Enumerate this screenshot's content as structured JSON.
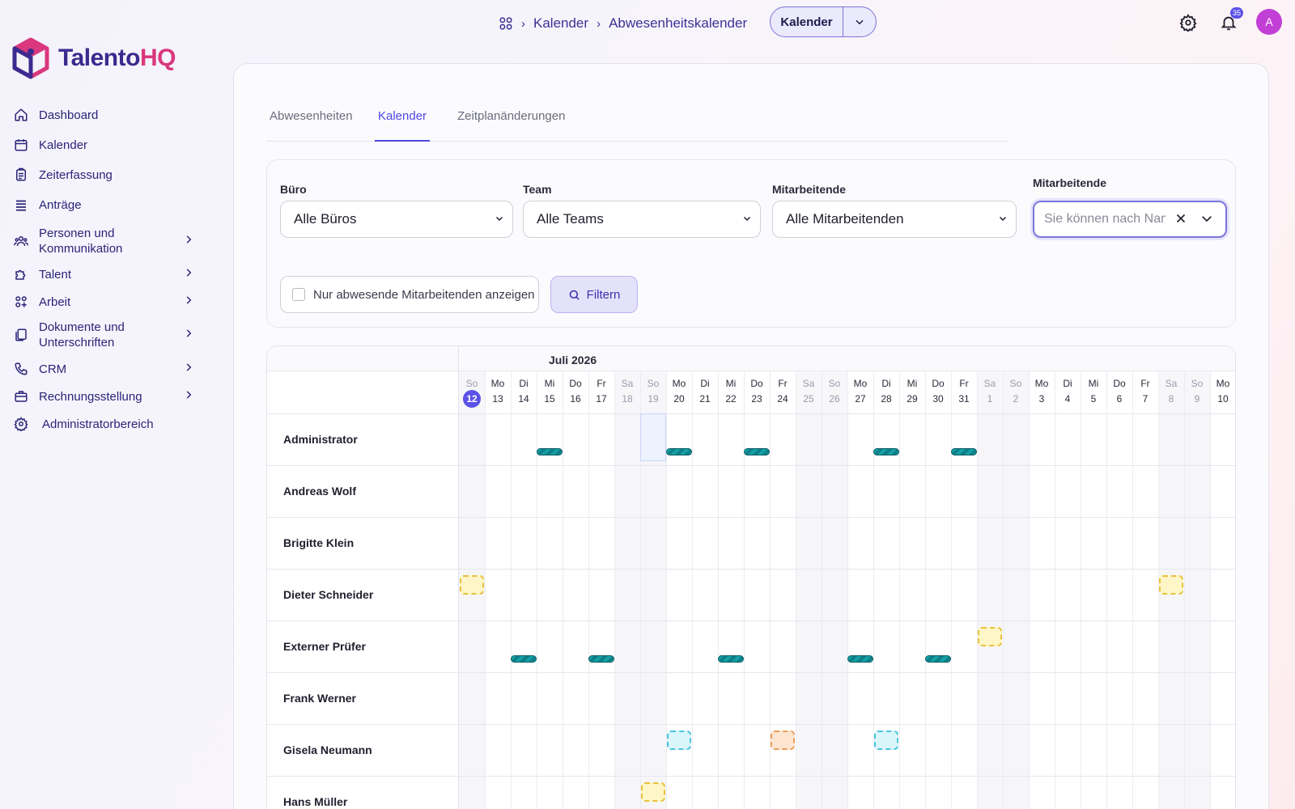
{
  "brand": {
    "part1": "Talento",
    "part2": "HQ"
  },
  "sidebar": {
    "items": [
      {
        "label": "Dashboard",
        "icon": "home-icon",
        "has_children": false
      },
      {
        "label": "Kalender",
        "icon": "calendar-icon",
        "has_children": false
      },
      {
        "label": "Zeiterfassung",
        "icon": "clipboard-icon",
        "has_children": false
      },
      {
        "label": "Anträge",
        "icon": "list-icon",
        "has_children": false
      },
      {
        "label": "Personen und Kommunikation",
        "icon": "people-icon",
        "has_children": true
      },
      {
        "label": "Talent",
        "icon": "puzzle-icon",
        "has_children": true
      },
      {
        "label": "Arbeit",
        "icon": "grid-icon",
        "has_children": true
      },
      {
        "label": "Dokumente und Unterschriften",
        "icon": "documents-icon",
        "has_children": true
      },
      {
        "label": "CRM",
        "icon": "phone-icon",
        "has_children": true
      },
      {
        "label": "Rechnungsstellung",
        "icon": "briefcase-icon",
        "has_children": true
      },
      {
        "label": "Administratorbereich",
        "icon": "gear-icon",
        "has_children": false
      }
    ]
  },
  "header": {
    "breadcrumb": [
      "Kalender",
      "Abwesenheitskalender"
    ],
    "split_button_label": "Kalender",
    "notification_count": "35",
    "avatar_initial": "A"
  },
  "tabs": [
    {
      "label": "Abwesenheiten",
      "active": false
    },
    {
      "label": "Kalender",
      "active": true
    },
    {
      "label": "Zeitplanänderungen",
      "active": false
    }
  ],
  "filters": {
    "office": {
      "label": "Büro",
      "value": "Alle Büros"
    },
    "team": {
      "label": "Team",
      "value": "Alle Teams"
    },
    "employee": {
      "label": "Mitarbeitende",
      "value": "Alle Mitarbeitenden"
    },
    "search": {
      "label": "Mitarbeitende",
      "placeholder": "Sie können nach Namen suchen"
    },
    "absent_only_label": "Nur abwesende Mitarbeitenden anzeigen",
    "filter_button": "Filtern"
  },
  "calendar": {
    "month_label": "Juli 2026",
    "days": [
      {
        "wd": "So",
        "d": "12",
        "weekend": true,
        "today": true
      },
      {
        "wd": "Mo",
        "d": "13"
      },
      {
        "wd": "Di",
        "d": "14"
      },
      {
        "wd": "Mi",
        "d": "15"
      },
      {
        "wd": "Do",
        "d": "16"
      },
      {
        "wd": "Fr",
        "d": "17"
      },
      {
        "wd": "Sa",
        "d": "18",
        "weekend": true
      },
      {
        "wd": "So",
        "d": "19",
        "weekend": true
      },
      {
        "wd": "Mo",
        "d": "20"
      },
      {
        "wd": "Di",
        "d": "21"
      },
      {
        "wd": "Mi",
        "d": "22"
      },
      {
        "wd": "Do",
        "d": "23"
      },
      {
        "wd": "Fr",
        "d": "24"
      },
      {
        "wd": "Sa",
        "d": "25",
        "weekend": true
      },
      {
        "wd": "So",
        "d": "26",
        "weekend": true
      },
      {
        "wd": "Mo",
        "d": "27"
      },
      {
        "wd": "Di",
        "d": "28"
      },
      {
        "wd": "Mi",
        "d": "29"
      },
      {
        "wd": "Do",
        "d": "30"
      },
      {
        "wd": "Fr",
        "d": "31"
      },
      {
        "wd": "Sa",
        "d": "1",
        "weekend": true
      },
      {
        "wd": "So",
        "d": "2",
        "weekend": true
      },
      {
        "wd": "Mo",
        "d": "3"
      },
      {
        "wd": "Di",
        "d": "4"
      },
      {
        "wd": "Mi",
        "d": "5"
      },
      {
        "wd": "Do",
        "d": "6"
      },
      {
        "wd": "Fr",
        "d": "7"
      },
      {
        "wd": "Sa",
        "d": "8",
        "weekend": true
      },
      {
        "wd": "So",
        "d": "9",
        "weekend": true
      },
      {
        "wd": "Mo",
        "d": "10"
      }
    ],
    "employees": [
      {
        "name": "Administrator",
        "bars": [
          3,
          8,
          11,
          16,
          19
        ],
        "marks": [],
        "highlight_day": 7
      },
      {
        "name": "Andreas Wolf",
        "bars": [],
        "marks": []
      },
      {
        "name": "Brigitte Klein",
        "bars": [],
        "marks": []
      },
      {
        "name": "Dieter Schneider",
        "bars": [],
        "marks": [
          {
            "day": 0,
            "color": "yellow"
          },
          {
            "day": 27,
            "color": "yellow"
          }
        ]
      },
      {
        "name": "Externer Prüfer",
        "bars": [
          2,
          5,
          10,
          15,
          18
        ],
        "marks": [
          {
            "day": 20,
            "color": "yellow"
          }
        ]
      },
      {
        "name": "Frank Werner",
        "bars": [],
        "marks": []
      },
      {
        "name": "Gisela Neumann",
        "bars": [],
        "marks": [
          {
            "day": 8,
            "color": "cyan"
          },
          {
            "day": 12,
            "color": "orange"
          },
          {
            "day": 16,
            "color": "cyan"
          }
        ]
      },
      {
        "name": "Hans Müller",
        "bars": [],
        "marks": [
          {
            "day": 7,
            "color": "yellow"
          }
        ]
      }
    ]
  }
}
